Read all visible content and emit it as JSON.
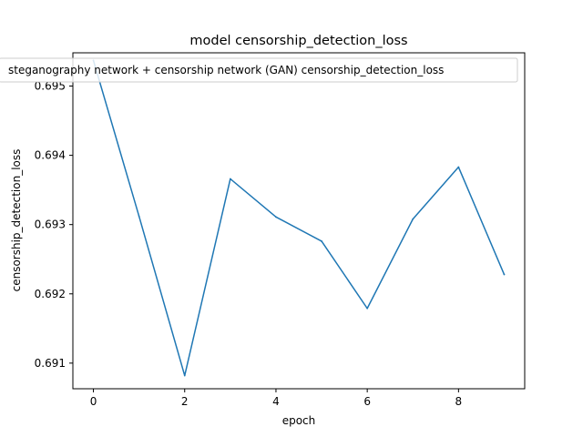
{
  "chart_data": {
    "type": "line",
    "title": "model censorship_detection_loss",
    "xlabel": "epoch",
    "ylabel": "censorship_detection_loss",
    "xlim": [
      -0.45,
      9.45
    ],
    "ylim": [
      0.69063,
      0.69548
    ],
    "xticks": [
      0,
      2,
      4,
      6,
      8
    ],
    "yticks": [
      0.691,
      0.692,
      0.693,
      0.694,
      0.695
    ],
    "xtick_labels": [
      "0",
      "2",
      "4",
      "6",
      "8"
    ],
    "ytick_labels": [
      "0.691",
      "0.692",
      "0.693",
      "0.694",
      "0.695"
    ],
    "grid": false,
    "legend_position": "top",
    "x": [
      0,
      1,
      2,
      3,
      4,
      5,
      6,
      7,
      8,
      9
    ],
    "series": [
      {
        "name": "steganography network + censorship network (GAN) censorship_detection_loss",
        "color": "#1f77b4",
        "values": [
          0.69537,
          0.69312,
          0.69082,
          0.69366,
          0.69311,
          0.69276,
          0.69179,
          0.69308,
          0.69383,
          0.69228
        ]
      }
    ]
  }
}
